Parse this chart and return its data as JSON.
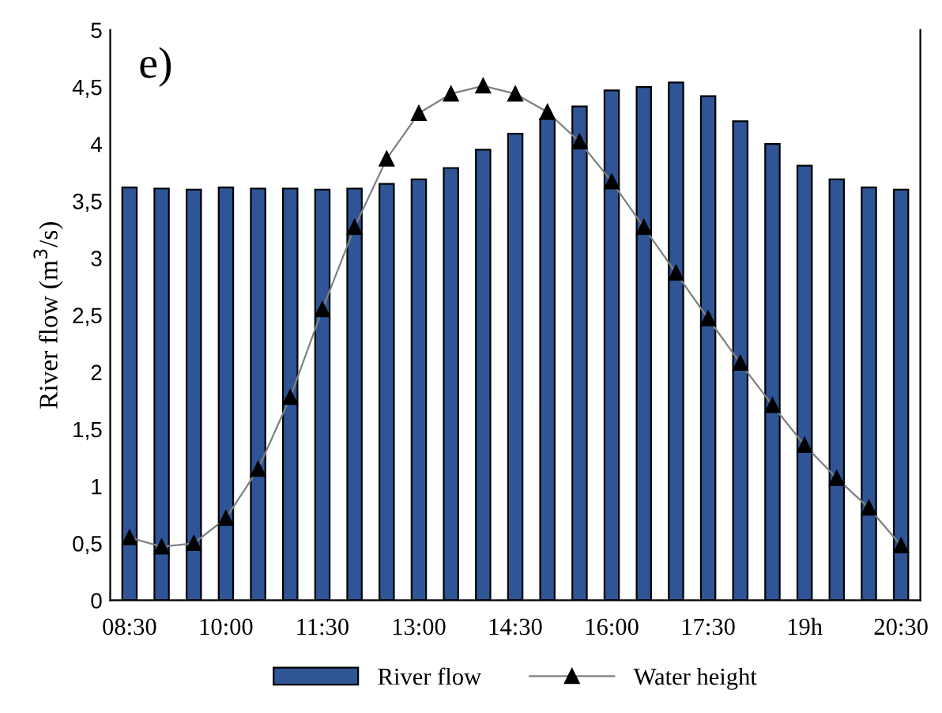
{
  "chart_data": {
    "type": "bar",
    "title": "e)",
    "ylabel": "River flow (m$^{3}$/s)",
    "categories": [
      "08:30",
      null,
      null,
      "10:00",
      null,
      null,
      "11:30",
      null,
      null,
      "13:00",
      null,
      null,
      "14:30",
      null,
      null,
      "16:00",
      null,
      null,
      "17:30",
      null,
      null,
      "19h",
      null,
      null,
      "20:30"
    ],
    "series": [
      {
        "name": "River flow",
        "color": "#2f5597",
        "values": [
          3.62,
          3.61,
          3.6,
          3.62,
          3.61,
          3.61,
          3.6,
          3.61,
          3.65,
          3.69,
          3.79,
          3.95,
          4.09,
          4.22,
          4.33,
          4.47,
          4.5,
          4.54,
          4.42,
          4.2,
          4.0,
          3.81,
          3.69,
          3.62,
          3.6
        ]
      },
      {
        "name": "Water height",
        "type": "line",
        "color": "#808080",
        "marker": "triangle",
        "values": [
          0.55,
          0.47,
          0.5,
          0.72,
          1.15,
          1.78,
          2.55,
          3.27,
          3.87,
          4.27,
          4.44,
          4.51,
          4.44,
          4.28,
          4.02,
          3.67,
          3.27,
          2.87,
          2.47,
          2.08,
          1.71,
          1.36,
          1.07,
          0.81,
          0.48
        ]
      }
    ],
    "ylim": [
      0,
      5
    ],
    "yticks": [
      0,
      {
        "value": 0.5,
        "label": "0,5"
      },
      1,
      {
        "value": 1.5,
        "label": "1,5"
      },
      2,
      {
        "value": 2.5,
        "label": "2,5"
      },
      3,
      {
        "value": 3.5,
        "label": "3,5"
      },
      4,
      {
        "value": 4.5,
        "label": "4,5"
      },
      5
    ],
    "grid": false,
    "legend": "bottom"
  }
}
